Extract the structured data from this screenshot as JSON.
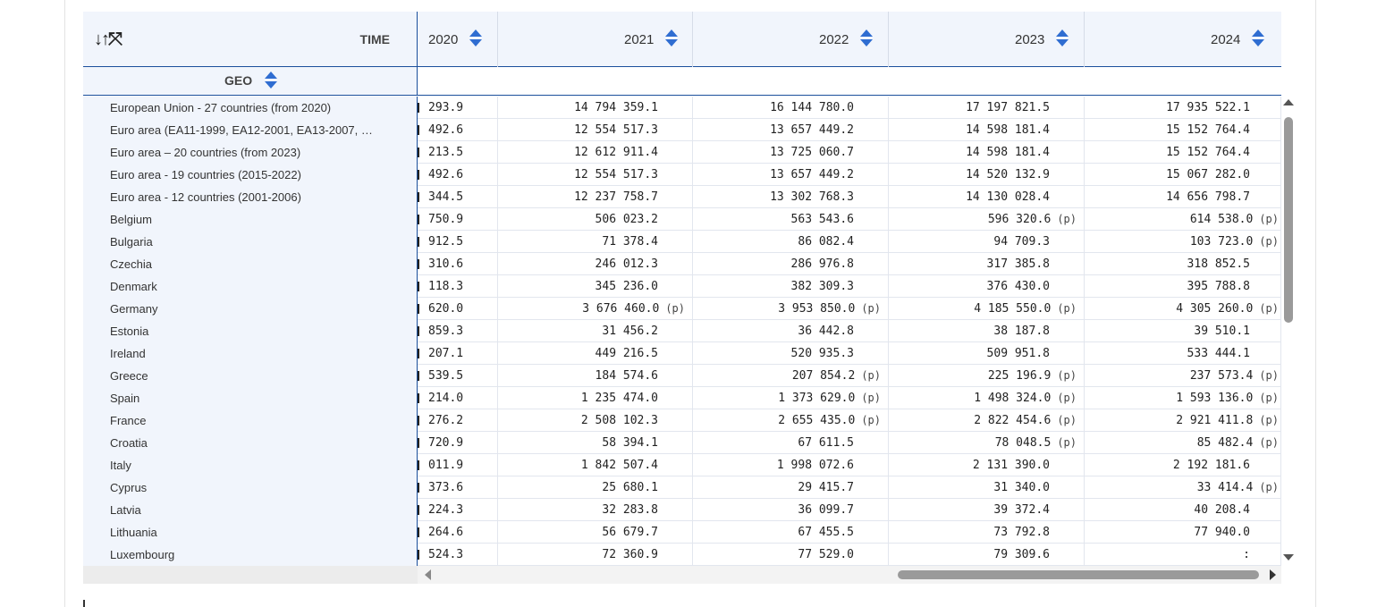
{
  "header": {
    "controls_label": "↓↑⤧",
    "time_label": "TIME",
    "geo_label": "GEO",
    "years": [
      "2020",
      "2021",
      "2022",
      "2023",
      "2024"
    ]
  },
  "rows": [
    {
      "geo": "European Union - 27 countries (from 2020)",
      "v2020": "293.9",
      "v2021": "14 794 359.1",
      "v2022": "16 144 780.0",
      "v2023": "17 197 821.5",
      "v2024": "17 935 522.1"
    },
    {
      "geo": "Euro area (EA11-1999, EA12-2001, EA13-2007, …",
      "v2020": "492.6",
      "v2021": "12 554 517.3",
      "v2022": "13 657 449.2",
      "v2023": "14 598 181.4",
      "v2024": "15 152 764.4"
    },
    {
      "geo": "Euro area – 20 countries (from 2023)",
      "v2020": "213.5",
      "v2021": "12 612 911.4",
      "v2022": "13 725 060.7",
      "v2023": "14 598 181.4",
      "v2024": "15 152 764.4"
    },
    {
      "geo": "Euro area - 19 countries (2015-2022)",
      "v2020": "492.6",
      "v2021": "12 554 517.3",
      "v2022": "13 657 449.2",
      "v2023": "14 520 132.9",
      "v2024": "15 067 282.0"
    },
    {
      "geo": "Euro area - 12 countries (2001-2006)",
      "v2020": "344.5",
      "v2021": "12 237 758.7",
      "v2022": "13 302 768.3",
      "v2023": "14 130 028.4",
      "v2024": "14 656 798.7"
    },
    {
      "geo": "Belgium",
      "v2020": "750.9",
      "v2021": "506 023.2",
      "v2022": "563 543.6",
      "v2023": "596 320.6",
      "f2023": "(p)",
      "v2024": "614 538.0",
      "f2024": "(p)"
    },
    {
      "geo": "Bulgaria",
      "v2020": "912.5",
      "v2021": "71 378.4",
      "v2022": "86 082.4",
      "v2023": "94 709.3",
      "v2024": "103 723.0",
      "f2024": "(p)"
    },
    {
      "geo": "Czechia",
      "v2020": "310.6",
      "v2021": "246 012.3",
      "v2022": "286 976.8",
      "v2023": "317 385.8",
      "v2024": "318 852.5"
    },
    {
      "geo": "Denmark",
      "v2020": "118.3",
      "v2021": "345 236.0",
      "v2022": "382 309.3",
      "v2023": "376 430.0",
      "v2024": "395 788.8"
    },
    {
      "geo": "Germany",
      "v2020": "620.0",
      "v2021": "3 676 460.0",
      "f2021": "(p)",
      "v2022": "3 953 850.0",
      "f2022": "(p)",
      "v2023": "4 185 550.0",
      "f2023": "(p)",
      "v2024": "4 305 260.0",
      "f2024": "(p)"
    },
    {
      "geo": "Estonia",
      "v2020": "859.3",
      "v2021": "31 456.2",
      "v2022": "36 442.8",
      "v2023": "38 187.8",
      "v2024": "39 510.1"
    },
    {
      "geo": "Ireland",
      "v2020": "207.1",
      "v2021": "449 216.5",
      "v2022": "520 935.3",
      "v2023": "509 951.8",
      "v2024": "533 444.1"
    },
    {
      "geo": "Greece",
      "v2020": "539.5",
      "v2021": "184 574.6",
      "v2022": "207 854.2",
      "f2022": "(p)",
      "v2023": "225 196.9",
      "f2023": "(p)",
      "v2024": "237 573.4",
      "f2024": "(p)"
    },
    {
      "geo": "Spain",
      "v2020": "214.0",
      "v2021": "1 235 474.0",
      "v2022": "1 373 629.0",
      "f2022": "(p)",
      "v2023": "1 498 324.0",
      "f2023": "(p)",
      "v2024": "1 593 136.0",
      "f2024": "(p)"
    },
    {
      "geo": "France",
      "v2020": "276.2",
      "v2021": "2 508 102.3",
      "v2022": "2 655 435.0",
      "f2022": "(p)",
      "v2023": "2 822 454.6",
      "f2023": "(p)",
      "v2024": "2 921 411.8",
      "f2024": "(p)"
    },
    {
      "geo": "Croatia",
      "v2020": "720.9",
      "v2021": "58 394.1",
      "v2022": "67 611.5",
      "v2023": "78 048.5",
      "f2023": "(p)",
      "v2024": "85 482.4",
      "f2024": "(p)"
    },
    {
      "geo": "Italy",
      "v2020": "011.9",
      "v2021": "1 842 507.4",
      "v2022": "1 998 072.6",
      "v2023": "2 131 390.0",
      "v2024": "2 192 181.6"
    },
    {
      "geo": "Cyprus",
      "v2020": "373.6",
      "v2021": "25 680.1",
      "v2022": "29 415.7",
      "v2023": "31 340.0",
      "v2024": "33 414.4",
      "f2024": "(p)"
    },
    {
      "geo": "Latvia",
      "v2020": "224.3",
      "v2021": "32 283.8",
      "v2022": "36 099.7",
      "v2023": "39 372.4",
      "v2024": "40 208.4"
    },
    {
      "geo": "Lithuania",
      "v2020": "264.6",
      "v2021": "56 679.7",
      "v2022": "67 455.5",
      "v2023": "73 792.8",
      "v2024": "77 940.0"
    },
    {
      "geo": "Luxembourg",
      "v2020": "524.3",
      "v2021": "72 360.9",
      "v2022": "77 529.0",
      "v2023": "79 309.6",
      "v2024": ":"
    }
  ],
  "colors": {
    "accent": "#2f6dd1",
    "header_bg": "#f1f5fc",
    "border": "#1b4f9c"
  }
}
